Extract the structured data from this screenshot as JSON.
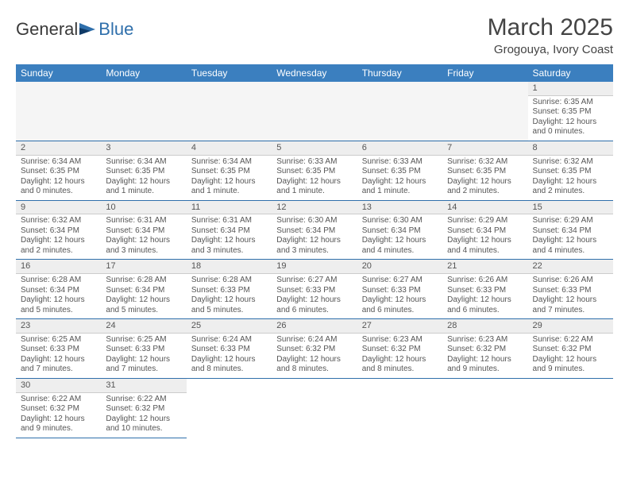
{
  "brand": {
    "word1": "General",
    "word2": "Blue"
  },
  "header": {
    "month": "March 2025",
    "location": "Grogouya, Ivory Coast"
  },
  "colors": {
    "header_bar": "#3b7fbf",
    "rule": "#2f6fab",
    "daynum_bg": "#eeeeee",
    "empty_bg": "#f5f5f5",
    "text": "#555555"
  },
  "dayNames": [
    "Sunday",
    "Monday",
    "Tuesday",
    "Wednesday",
    "Thursday",
    "Friday",
    "Saturday"
  ],
  "startOffset": 6,
  "days": [
    {
      "n": 1,
      "sunrise": "6:35 AM",
      "sunset": "6:35 PM",
      "daylight": "12 hours and 0 minutes."
    },
    {
      "n": 2,
      "sunrise": "6:34 AM",
      "sunset": "6:35 PM",
      "daylight": "12 hours and 0 minutes."
    },
    {
      "n": 3,
      "sunrise": "6:34 AM",
      "sunset": "6:35 PM",
      "daylight": "12 hours and 1 minute."
    },
    {
      "n": 4,
      "sunrise": "6:34 AM",
      "sunset": "6:35 PM",
      "daylight": "12 hours and 1 minute."
    },
    {
      "n": 5,
      "sunrise": "6:33 AM",
      "sunset": "6:35 PM",
      "daylight": "12 hours and 1 minute."
    },
    {
      "n": 6,
      "sunrise": "6:33 AM",
      "sunset": "6:35 PM",
      "daylight": "12 hours and 1 minute."
    },
    {
      "n": 7,
      "sunrise": "6:32 AM",
      "sunset": "6:35 PM",
      "daylight": "12 hours and 2 minutes."
    },
    {
      "n": 8,
      "sunrise": "6:32 AM",
      "sunset": "6:35 PM",
      "daylight": "12 hours and 2 minutes."
    },
    {
      "n": 9,
      "sunrise": "6:32 AM",
      "sunset": "6:34 PM",
      "daylight": "12 hours and 2 minutes."
    },
    {
      "n": 10,
      "sunrise": "6:31 AM",
      "sunset": "6:34 PM",
      "daylight": "12 hours and 3 minutes."
    },
    {
      "n": 11,
      "sunrise": "6:31 AM",
      "sunset": "6:34 PM",
      "daylight": "12 hours and 3 minutes."
    },
    {
      "n": 12,
      "sunrise": "6:30 AM",
      "sunset": "6:34 PM",
      "daylight": "12 hours and 3 minutes."
    },
    {
      "n": 13,
      "sunrise": "6:30 AM",
      "sunset": "6:34 PM",
      "daylight": "12 hours and 4 minutes."
    },
    {
      "n": 14,
      "sunrise": "6:29 AM",
      "sunset": "6:34 PM",
      "daylight": "12 hours and 4 minutes."
    },
    {
      "n": 15,
      "sunrise": "6:29 AM",
      "sunset": "6:34 PM",
      "daylight": "12 hours and 4 minutes."
    },
    {
      "n": 16,
      "sunrise": "6:28 AM",
      "sunset": "6:34 PM",
      "daylight": "12 hours and 5 minutes."
    },
    {
      "n": 17,
      "sunrise": "6:28 AM",
      "sunset": "6:34 PM",
      "daylight": "12 hours and 5 minutes."
    },
    {
      "n": 18,
      "sunrise": "6:28 AM",
      "sunset": "6:33 PM",
      "daylight": "12 hours and 5 minutes."
    },
    {
      "n": 19,
      "sunrise": "6:27 AM",
      "sunset": "6:33 PM",
      "daylight": "12 hours and 6 minutes."
    },
    {
      "n": 20,
      "sunrise": "6:27 AM",
      "sunset": "6:33 PM",
      "daylight": "12 hours and 6 minutes."
    },
    {
      "n": 21,
      "sunrise": "6:26 AM",
      "sunset": "6:33 PM",
      "daylight": "12 hours and 6 minutes."
    },
    {
      "n": 22,
      "sunrise": "6:26 AM",
      "sunset": "6:33 PM",
      "daylight": "12 hours and 7 minutes."
    },
    {
      "n": 23,
      "sunrise": "6:25 AM",
      "sunset": "6:33 PM",
      "daylight": "12 hours and 7 minutes."
    },
    {
      "n": 24,
      "sunrise": "6:25 AM",
      "sunset": "6:33 PM",
      "daylight": "12 hours and 7 minutes."
    },
    {
      "n": 25,
      "sunrise": "6:24 AM",
      "sunset": "6:33 PM",
      "daylight": "12 hours and 8 minutes."
    },
    {
      "n": 26,
      "sunrise": "6:24 AM",
      "sunset": "6:32 PM",
      "daylight": "12 hours and 8 minutes."
    },
    {
      "n": 27,
      "sunrise": "6:23 AM",
      "sunset": "6:32 PM",
      "daylight": "12 hours and 8 minutes."
    },
    {
      "n": 28,
      "sunrise": "6:23 AM",
      "sunset": "6:32 PM",
      "daylight": "12 hours and 9 minutes."
    },
    {
      "n": 29,
      "sunrise": "6:22 AM",
      "sunset": "6:32 PM",
      "daylight": "12 hours and 9 minutes."
    },
    {
      "n": 30,
      "sunrise": "6:22 AM",
      "sunset": "6:32 PM",
      "daylight": "12 hours and 9 minutes."
    },
    {
      "n": 31,
      "sunrise": "6:22 AM",
      "sunset": "6:32 PM",
      "daylight": "12 hours and 10 minutes."
    }
  ],
  "labels": {
    "sunrise": "Sunrise:",
    "sunset": "Sunset:",
    "daylight": "Daylight:"
  }
}
